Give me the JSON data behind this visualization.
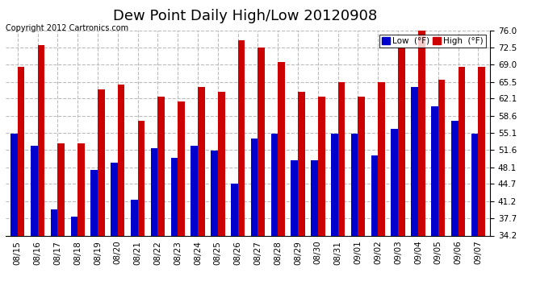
{
  "title": "Dew Point Daily High/Low 20120908",
  "copyright": "Copyright 2012 Cartronics.com",
  "dates": [
    "08/15",
    "08/16",
    "08/17",
    "08/18",
    "08/19",
    "08/20",
    "08/21",
    "08/22",
    "08/23",
    "08/24",
    "08/25",
    "08/26",
    "08/27",
    "08/28",
    "08/29",
    "08/30",
    "08/31",
    "09/01",
    "09/02",
    "09/03",
    "09/04",
    "09/05",
    "09/06",
    "09/07"
  ],
  "lows": [
    55.0,
    52.5,
    39.5,
    38.0,
    47.5,
    49.0,
    41.5,
    52.0,
    50.0,
    52.5,
    51.5,
    44.7,
    54.0,
    55.0,
    49.5,
    49.5,
    55.0,
    55.0,
    50.5,
    56.0,
    64.5,
    60.5,
    57.5,
    55.0
  ],
  "highs": [
    68.5,
    73.0,
    53.0,
    53.0,
    64.0,
    65.0,
    57.5,
    62.5,
    61.5,
    64.5,
    63.5,
    74.0,
    72.5,
    69.5,
    63.5,
    62.5,
    65.5,
    62.5,
    65.5,
    72.5,
    76.0,
    66.0,
    68.5,
    68.5
  ],
  "low_color": "#0000cc",
  "high_color": "#cc0000",
  "bg_color": "#ffffff",
  "plot_bg_color": "#ffffff",
  "grid_color": "#bbbbbb",
  "ylim_min": 34.2,
  "ylim_max": 76.0,
  "yticks": [
    34.2,
    37.7,
    41.2,
    44.7,
    48.1,
    51.6,
    55.1,
    58.6,
    62.1,
    65.5,
    69.0,
    72.5,
    76.0
  ],
  "title_fontsize": 13,
  "copyright_fontsize": 7,
  "tick_fontsize": 7.5,
  "legend_low_label": "Low  (°F)",
  "legend_high_label": "High  (°F)"
}
